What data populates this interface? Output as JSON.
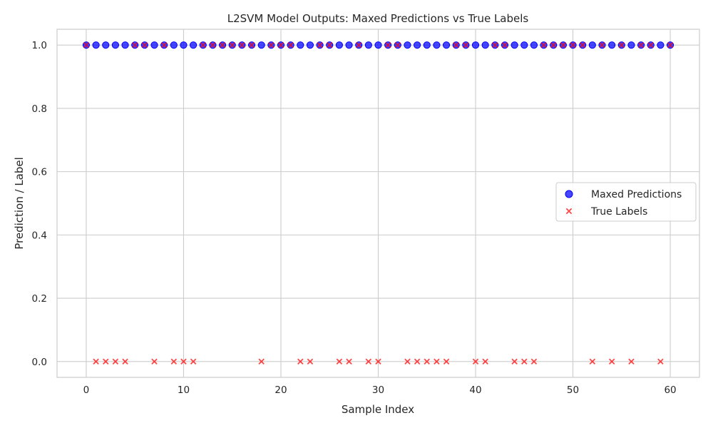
{
  "chart_data": {
    "type": "scatter",
    "title": "L2SVM Model Outputs: Maxed Predictions vs True Labels",
    "xlabel": "Sample Index",
    "ylabel": "Prediction / Label",
    "xlim": [
      -3,
      63
    ],
    "ylim": [
      -0.05,
      1.05
    ],
    "xticks": [
      0,
      10,
      20,
      30,
      40,
      50,
      60
    ],
    "yticks": [
      0.0,
      0.2,
      0.4,
      0.6,
      0.8,
      1.0
    ],
    "xtick_labels": [
      "0",
      "10",
      "20",
      "30",
      "40",
      "50",
      "60"
    ],
    "ytick_labels": [
      "0.0",
      "0.2",
      "0.4",
      "0.6",
      "0.8",
      "1.0"
    ],
    "grid": true,
    "legend_position": "center-right",
    "series": [
      {
        "name": "Maxed Predictions",
        "marker": "circle",
        "color": "#0000ff",
        "x": [
          0,
          1,
          2,
          3,
          4,
          5,
          6,
          7,
          8,
          9,
          10,
          11,
          12,
          13,
          14,
          15,
          16,
          17,
          18,
          19,
          20,
          21,
          22,
          23,
          24,
          25,
          26,
          27,
          28,
          29,
          30,
          31,
          32,
          33,
          34,
          35,
          36,
          37,
          38,
          39,
          40,
          41,
          42,
          43,
          44,
          45,
          46,
          47,
          48,
          49,
          50,
          51,
          52,
          53,
          54,
          55,
          56,
          57,
          58,
          59,
          60
        ],
        "y": [
          1,
          1,
          1,
          1,
          1,
          1,
          1,
          1,
          1,
          1,
          1,
          1,
          1,
          1,
          1,
          1,
          1,
          1,
          1,
          1,
          1,
          1,
          1,
          1,
          1,
          1,
          1,
          1,
          1,
          1,
          1,
          1,
          1,
          1,
          1,
          1,
          1,
          1,
          1,
          1,
          1,
          1,
          1,
          1,
          1,
          1,
          1,
          1,
          1,
          1,
          1,
          1,
          1,
          1,
          1,
          1,
          1,
          1,
          1,
          1,
          1
        ]
      },
      {
        "name": "True Labels",
        "marker": "x",
        "color": "#ff0000",
        "x": [
          0,
          1,
          2,
          3,
          4,
          5,
          6,
          7,
          8,
          9,
          10,
          11,
          12,
          13,
          14,
          15,
          16,
          17,
          18,
          19,
          20,
          21,
          22,
          23,
          24,
          25,
          26,
          27,
          28,
          29,
          30,
          31,
          32,
          33,
          34,
          35,
          36,
          37,
          38,
          39,
          40,
          41,
          42,
          43,
          44,
          45,
          46,
          47,
          48,
          49,
          50,
          51,
          52,
          53,
          54,
          55,
          56,
          57,
          58,
          59,
          60
        ],
        "y": [
          1,
          0,
          0,
          0,
          0,
          1,
          1,
          0,
          1,
          0,
          0,
          0,
          1,
          1,
          1,
          1,
          1,
          1,
          0,
          1,
          1,
          1,
          0,
          0,
          1,
          1,
          0,
          0,
          1,
          0,
          0,
          1,
          1,
          0,
          0,
          0,
          0,
          0,
          1,
          1,
          0,
          0,
          1,
          1,
          0,
          0,
          0,
          1,
          1,
          1,
          1,
          1,
          0,
          1,
          0,
          1,
          0,
          1,
          1,
          0,
          1
        ]
      }
    ]
  }
}
